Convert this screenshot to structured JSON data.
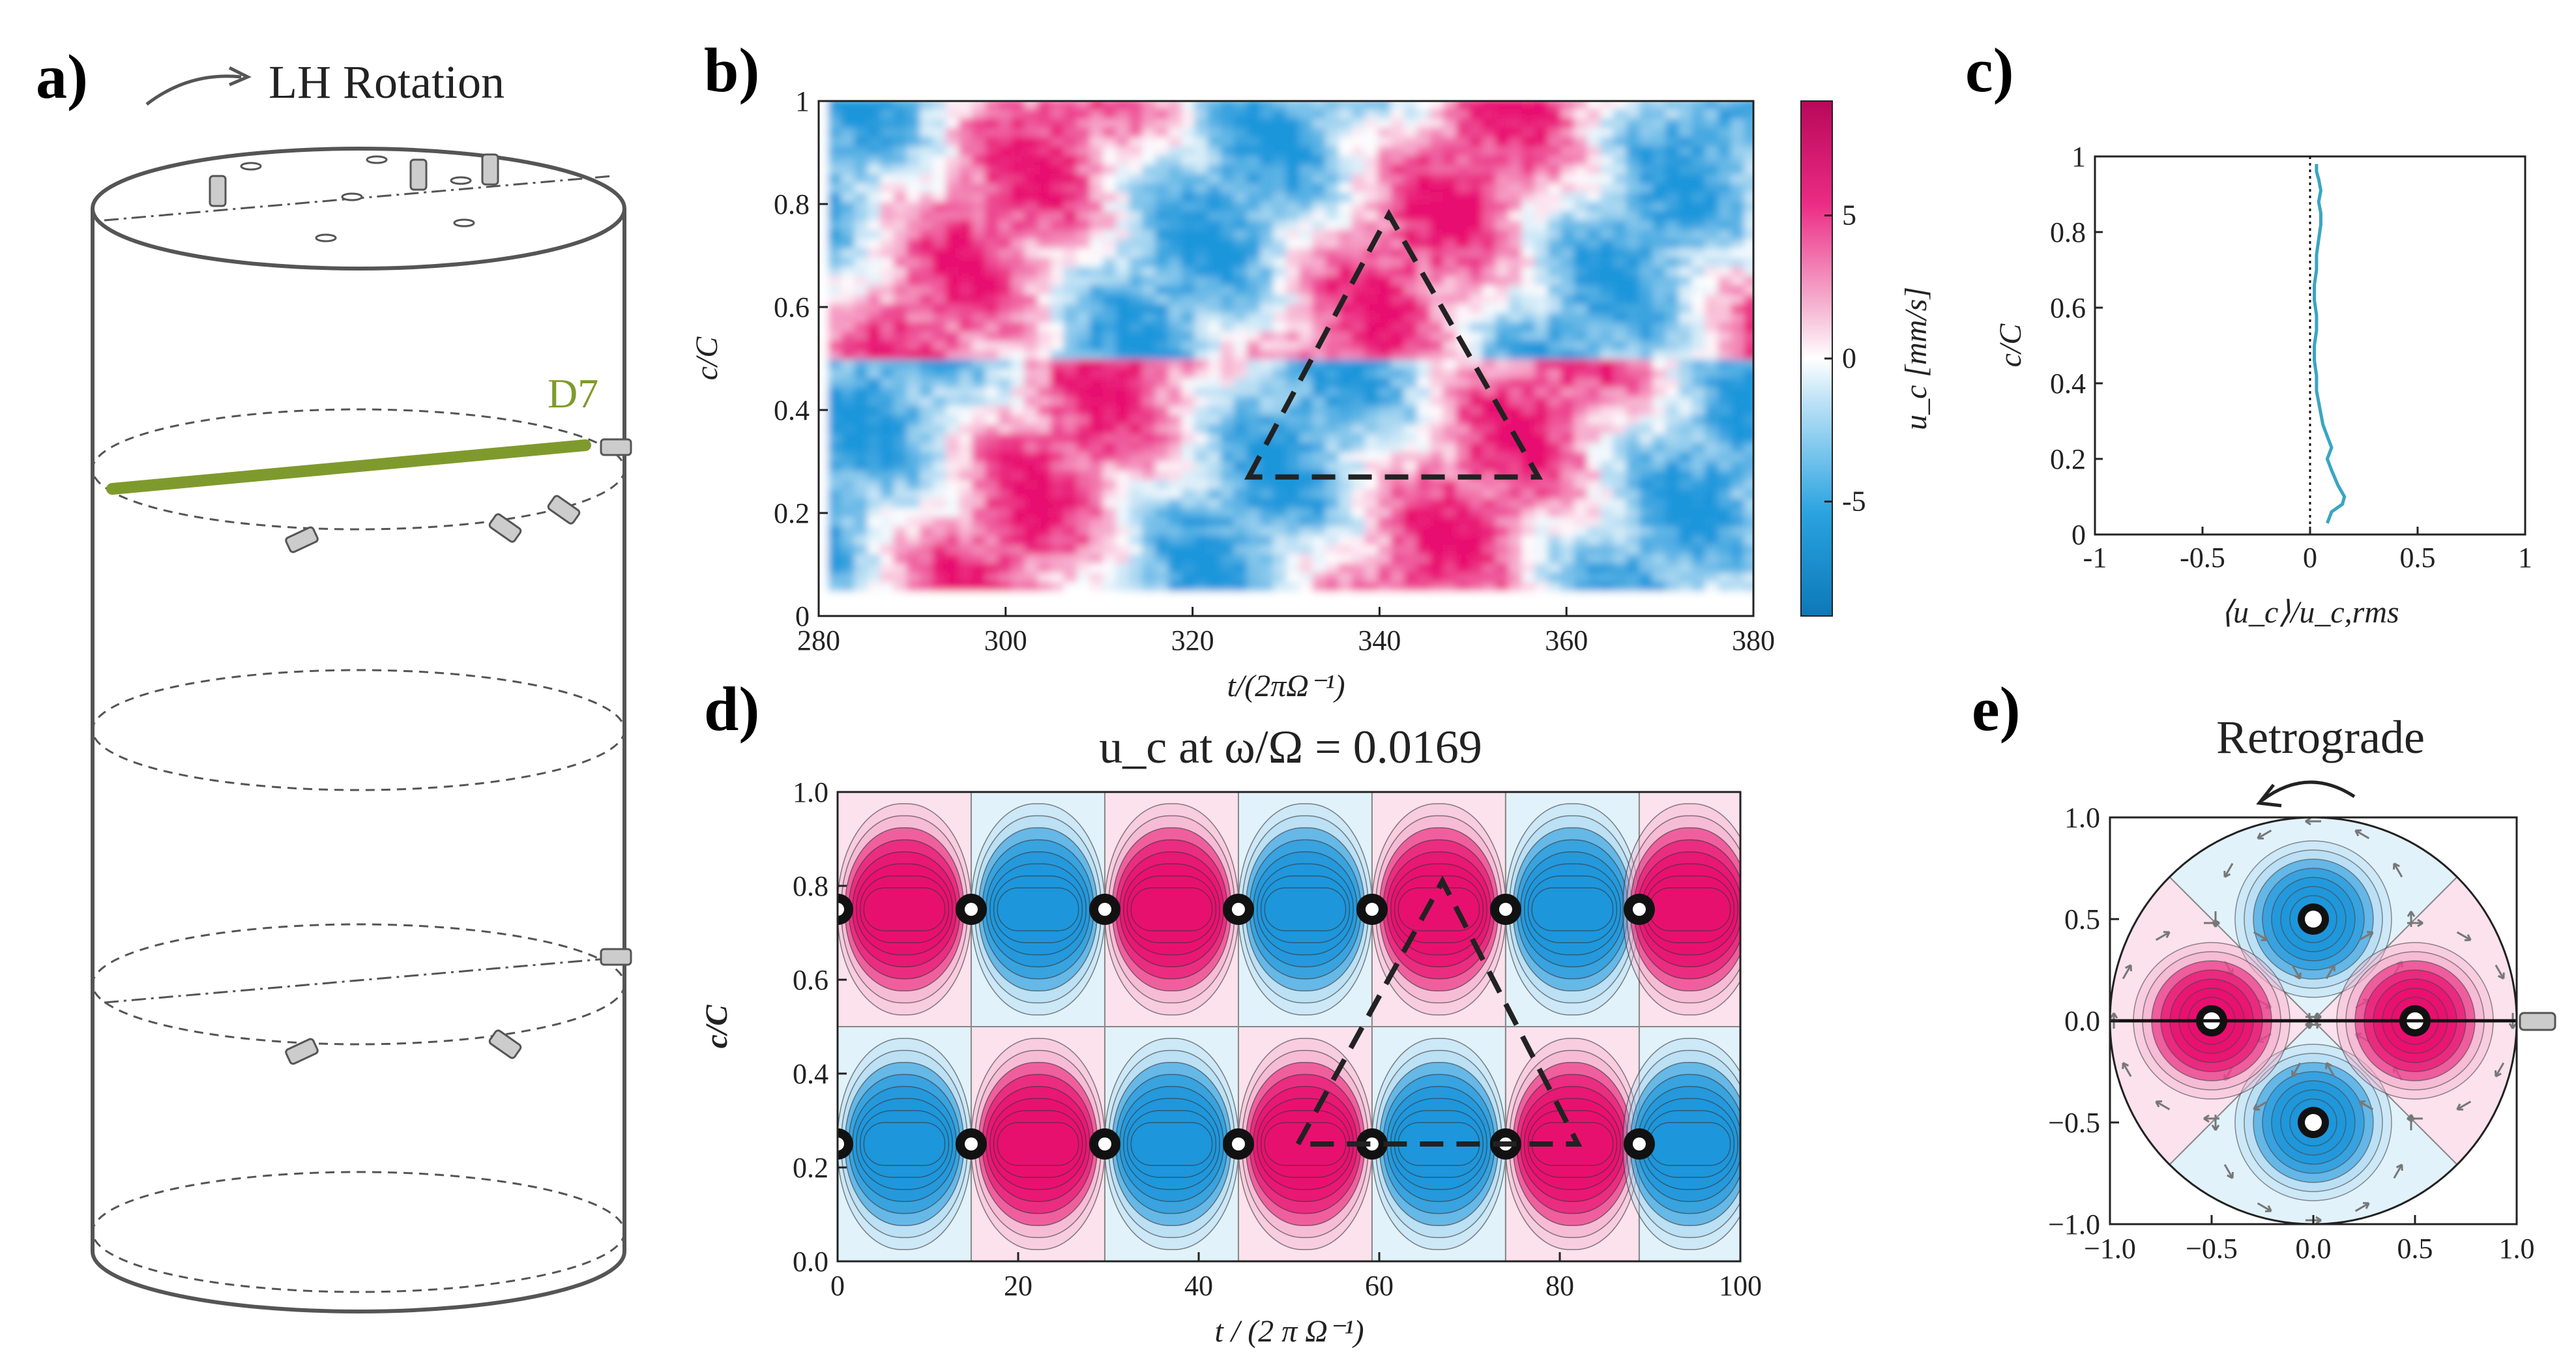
{
  "colors": {
    "positive": "#e8106f",
    "positive_light": "#f4a6c8",
    "negative": "#1e96db",
    "negative_light": "#a6d7f2",
    "probe": "#7f9a2c",
    "profile": "#3aa5c2",
    "axis": "#222222"
  },
  "panel_a": {
    "label": "a)",
    "rotation_label": "LH Rotation",
    "probe_label": "D7"
  },
  "panel_b": {
    "label": "b)",
    "chart_data": {
      "type": "heatmap",
      "xlabel": "t/(2πΩ⁻¹)",
      "ylabel": "c/C",
      "xlim": [
        280,
        380
      ],
      "ylim": [
        0,
        1
      ],
      "xticks": [
        "280",
        "300",
        "320",
        "340",
        "360",
        "380"
      ],
      "yticks": [
        "0",
        "0.2",
        "0.4",
        "0.6",
        "0.8",
        "1"
      ],
      "colorbar_label": "u_c [mm/s]",
      "colorbar_ticks": [
        "-5",
        "0",
        "5"
      ],
      "colorbar_range": [
        -9,
        9
      ],
      "triangle": [
        [
          326,
          0.27
        ],
        [
          341,
          0.78
        ],
        [
          357,
          0.27
        ]
      ]
    }
  },
  "panel_c": {
    "label": "c)",
    "chart_data": {
      "type": "line",
      "xlabel": "⟨u_c⟩/u_c,rms",
      "ylabel": "c/C",
      "xlim": [
        -1,
        1
      ],
      "ylim": [
        0,
        1
      ],
      "xticks": [
        "-1",
        "-0.5",
        "0",
        "0.5",
        "1"
      ],
      "yticks": [
        "0",
        "0.2",
        "0.4",
        "0.6",
        "0.8",
        "1"
      ],
      "x": [
        0.08,
        0.1,
        0.15,
        0.16,
        0.13,
        0.1,
        0.08,
        0.1,
        0.08,
        0.06,
        0.05,
        0.04,
        0.03,
        0.03,
        0.02,
        0.02,
        0.03,
        0.03,
        0.02,
        0.02,
        0.03,
        0.03,
        0.04,
        0.05,
        0.05,
        0.04,
        0.05,
        0.04,
        0.03,
        0.03
      ],
      "y": [
        0.03,
        0.06,
        0.08,
        0.1,
        0.13,
        0.17,
        0.2,
        0.23,
        0.26,
        0.29,
        0.32,
        0.35,
        0.38,
        0.42,
        0.46,
        0.5,
        0.54,
        0.58,
        0.62,
        0.66,
        0.7,
        0.74,
        0.78,
        0.82,
        0.85,
        0.88,
        0.91,
        0.94,
        0.96,
        0.98
      ]
    }
  },
  "panel_d": {
    "label": "d)",
    "chart_data": {
      "type": "heatmap",
      "title": "u_c at ω/Ω = 0.0169",
      "xlabel": "t / (2 π Ω⁻¹)",
      "ylabel": "c/C",
      "xlim": [
        0,
        100
      ],
      "ylim": [
        0,
        1
      ],
      "xticks": [
        "0",
        "20",
        "40",
        "60",
        "80",
        "100"
      ],
      "yticks": [
        "0.0",
        "0.2",
        "0.4",
        "0.6",
        "0.8",
        "1.0"
      ],
      "period": 29.6,
      "cell_boundaries": [
        0,
        14.8,
        29.6,
        44.4,
        59.2,
        74.0,
        88.8,
        100
      ],
      "rows": [
        {
          "y_range": [
            0.5,
            1.0
          ],
          "signs": [
            1,
            -1,
            1,
            -1,
            1,
            -1,
            1
          ]
        },
        {
          "y_range": [
            0.0,
            0.5
          ],
          "signs": [
            -1,
            1,
            -1,
            1,
            -1,
            1,
            -1
          ]
        }
      ],
      "triangle": [
        [
          51,
          0.25
        ],
        [
          67,
          0.81
        ],
        [
          82,
          0.25
        ]
      ]
    }
  },
  "panel_e": {
    "label": "e)",
    "chart_data": {
      "type": "heatmap",
      "title": "Retrograde",
      "xlim": [
        -1.0,
        1.0
      ],
      "ylim": [
        -1.0,
        1.0
      ],
      "xticks": [
        "−1.0",
        "−0.5",
        "0.0",
        "0.5",
        "1.0"
      ],
      "yticks": [
        "−1.0",
        "−0.5",
        "0.0",
        "0.5",
        "1.0"
      ],
      "vortices": [
        {
          "x": 0.0,
          "y": 0.5,
          "sign": -1
        },
        {
          "x": 0.0,
          "y": -0.5,
          "sign": -1
        },
        {
          "x": -0.5,
          "y": 0.0,
          "sign": 1
        },
        {
          "x": 0.5,
          "y": 0.0,
          "sign": 1
        }
      ]
    }
  }
}
